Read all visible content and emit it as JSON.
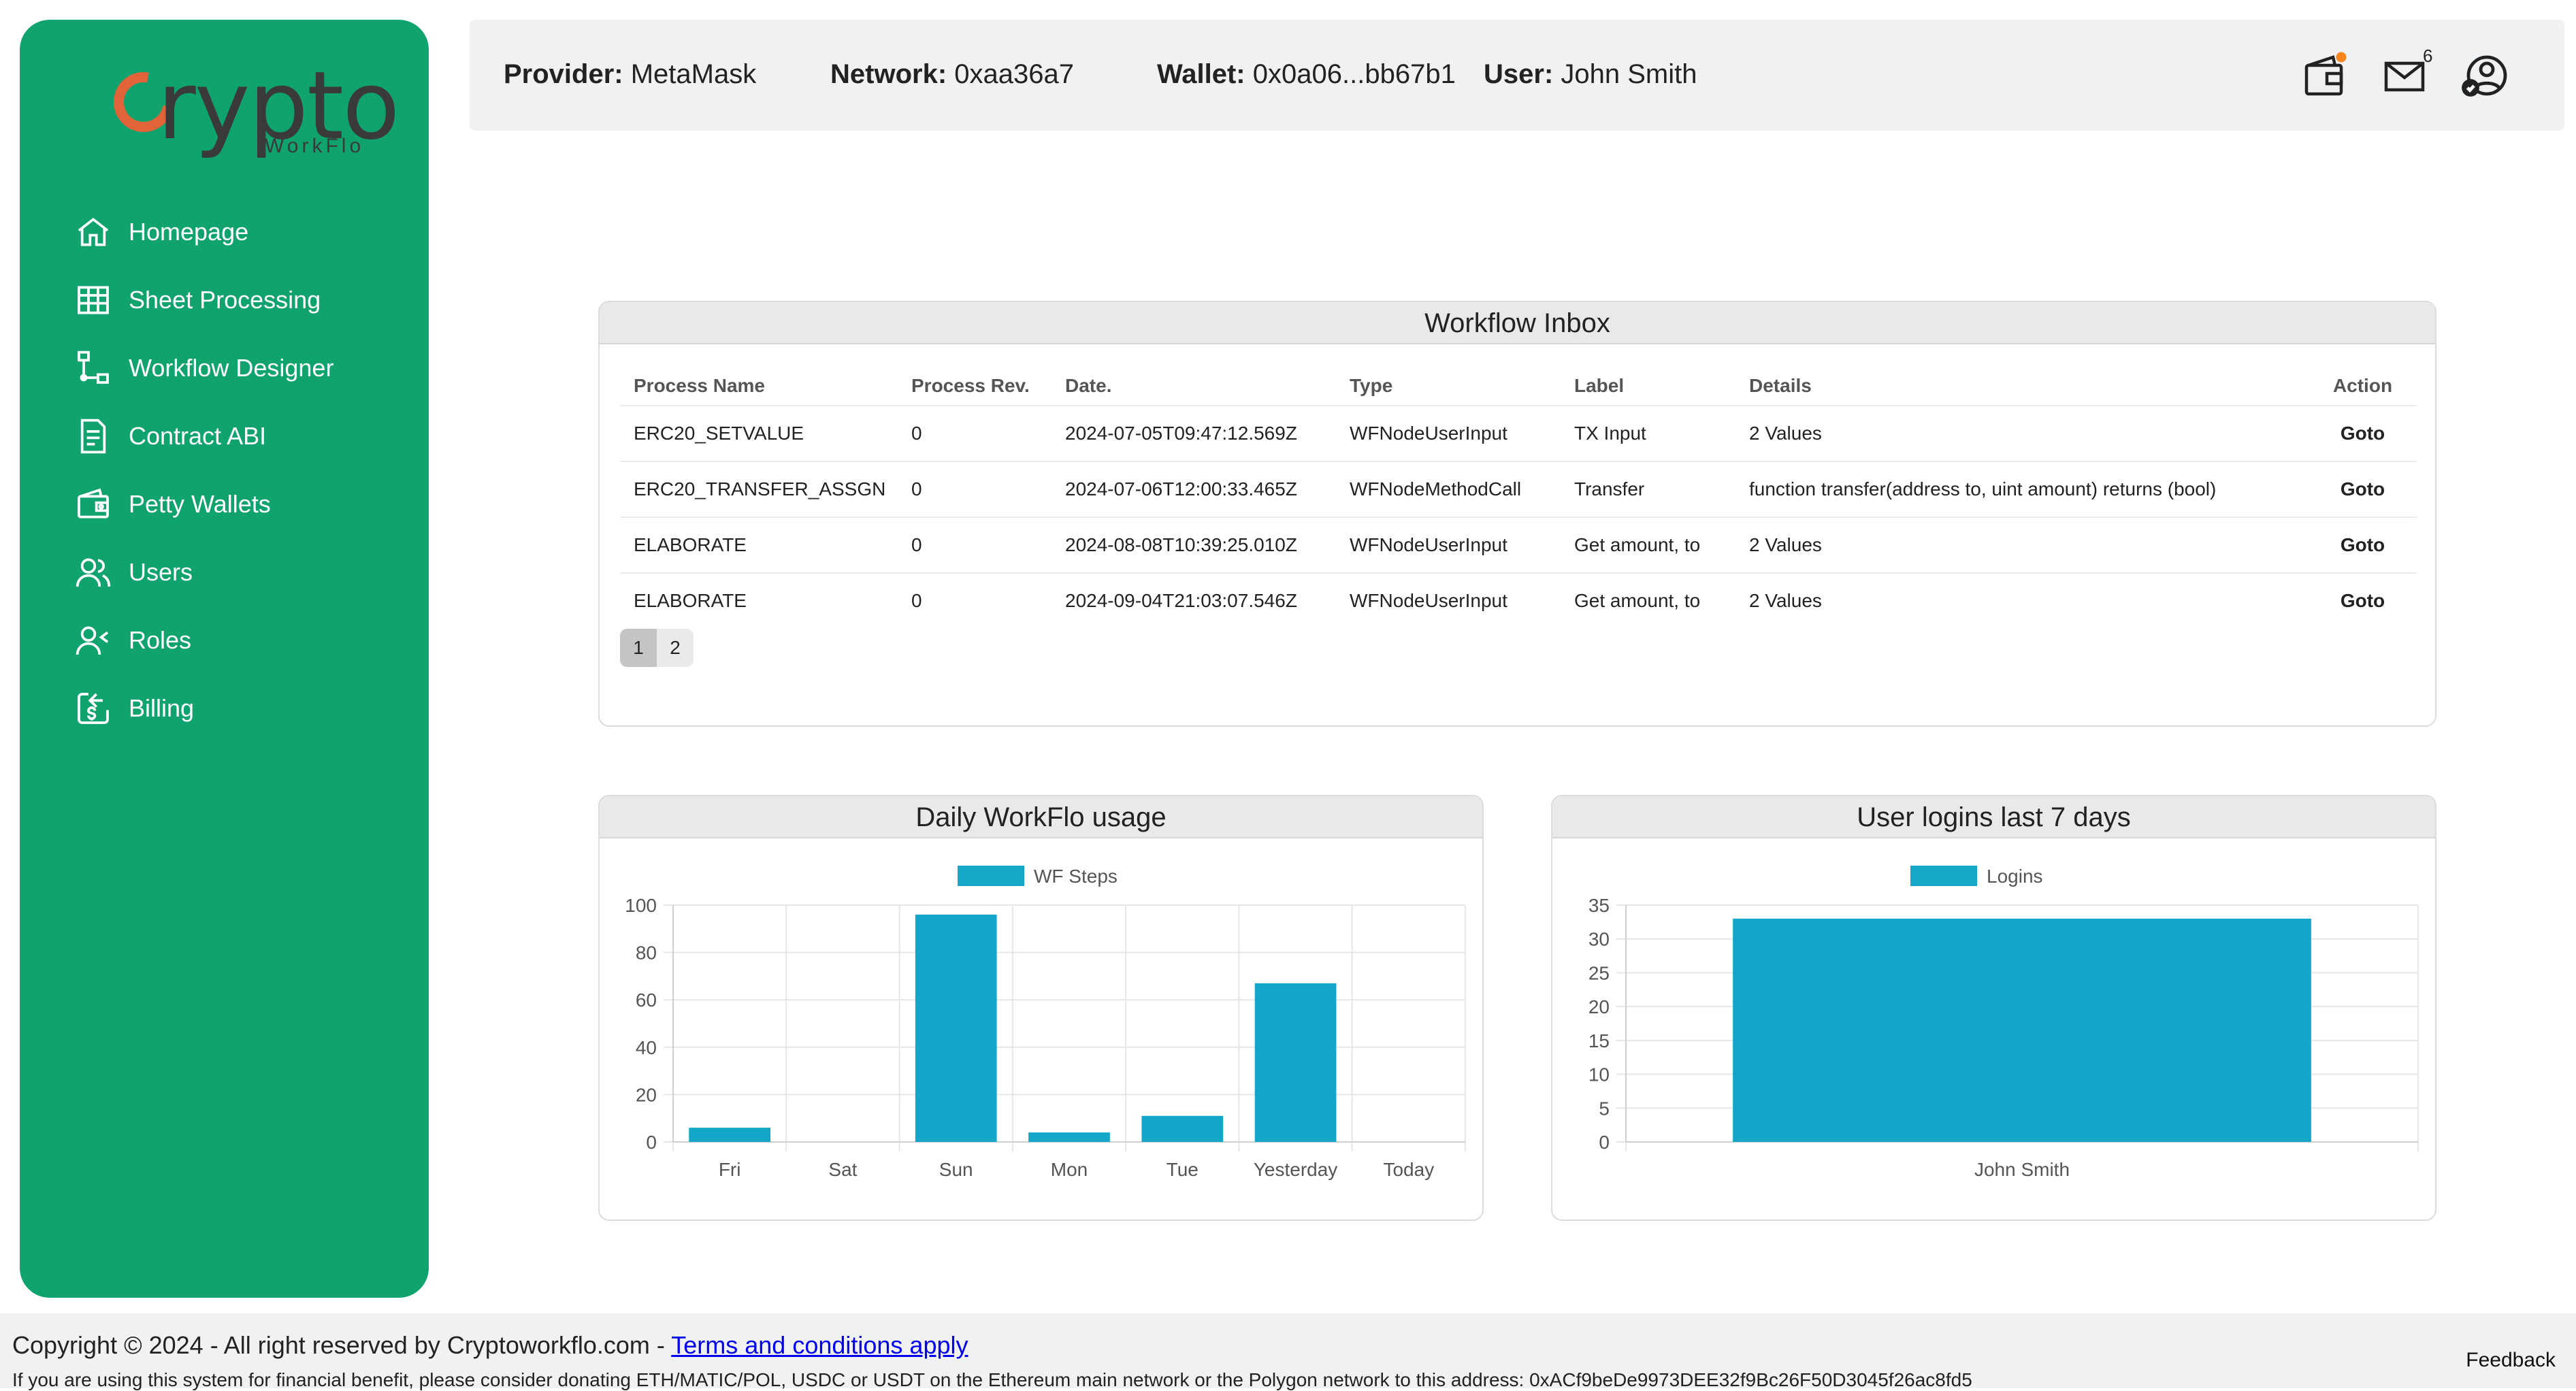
{
  "logo": {
    "word": "rypto",
    "sub": "WorkFlo"
  },
  "sidebar": {
    "items": [
      {
        "label": "Homepage",
        "icon": "home-icon"
      },
      {
        "label": "Sheet Processing",
        "icon": "table-icon"
      },
      {
        "label": "Workflow Designer",
        "icon": "workflow-icon"
      },
      {
        "label": "Contract ABI",
        "icon": "document-icon"
      },
      {
        "label": "Petty Wallets",
        "icon": "wallet-icon"
      },
      {
        "label": "Users",
        "icon": "users-icon"
      },
      {
        "label": "Roles",
        "icon": "roles-icon"
      },
      {
        "label": "Billing",
        "icon": "billing-icon"
      }
    ]
  },
  "header": {
    "provider_label": "Provider:",
    "provider": "MetaMask",
    "network_label": "Network:",
    "network": "0xaa36a7",
    "wallet_label": "Wallet:",
    "wallet": "0x0a06...bb67b1",
    "user_label": "User:",
    "user": "John Smith",
    "mail_count": "6"
  },
  "inbox": {
    "title": "Workflow Inbox",
    "columns": [
      "Process Name",
      "Process Rev.",
      "Date.",
      "Type",
      "Label",
      "Details",
      "Action"
    ],
    "rows": [
      [
        "ERC20_SETVALUE",
        "0",
        "2024-07-05T09:47:12.569Z",
        "WFNodeUserInput",
        "TX Input",
        "2 Values",
        "Goto"
      ],
      [
        "ERC20_TRANSFER_ASSGN",
        "0",
        "2024-07-06T12:00:33.465Z",
        "WFNodeMethodCall",
        "Transfer",
        "function transfer(address to, uint amount) returns (bool)",
        "Goto"
      ],
      [
        "ELABORATE",
        "0",
        "2024-08-08T10:39:25.010Z",
        "WFNodeUserInput",
        "Get amount, to",
        "2 Values",
        "Goto"
      ],
      [
        "ELABORATE",
        "0",
        "2024-09-04T21:03:07.546Z",
        "WFNodeUserInput",
        "Get amount, to",
        "2 Values",
        "Goto"
      ]
    ],
    "pages": [
      "1",
      "2"
    ]
  },
  "chart_data": [
    {
      "type": "bar",
      "title": "Daily WorkFlo usage",
      "legend": "WF Steps",
      "categories": [
        "Fri",
        "Sat",
        "Sun",
        "Mon",
        "Tue",
        "Yesterday",
        "Today"
      ],
      "values": [
        6,
        0,
        96,
        4,
        11,
        67,
        0
      ],
      "ylim": [
        0,
        100
      ],
      "yticks": [
        0,
        20,
        40,
        60,
        80,
        100
      ],
      "color": "#12a6c8"
    },
    {
      "type": "bar",
      "title": "User logins last 7 days",
      "legend": "Logins",
      "categories": [
        "John Smith"
      ],
      "values": [
        33
      ],
      "ylim": [
        0,
        35
      ],
      "yticks": [
        0,
        5,
        10,
        15,
        20,
        25,
        30,
        35
      ],
      "color": "#12a6c8"
    }
  ],
  "footer": {
    "copyright": "Copyright © 2024 - All right reserved by Cryptoworkflo.com - ",
    "terms": "Terms and conditions apply",
    "donate": "If you are using this system for financial benefit, please consider donating ETH/MATIC/POL, USDC or USDT on the Ethereum main network or the Polygon network to this address: 0xACf9beDe9973DEE32f9Bc26F50D3045f26ac8fd5",
    "feedback": "Feedback"
  }
}
